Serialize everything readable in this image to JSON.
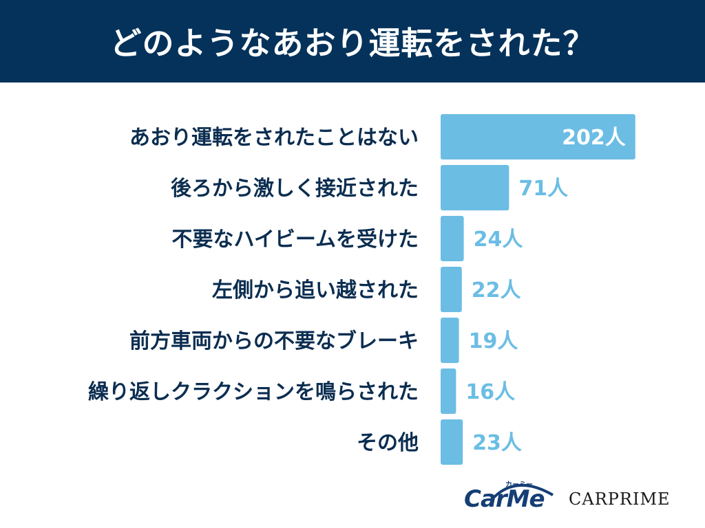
{
  "header": {
    "title": "どのようなあおり運転をされた？"
  },
  "chart_data": {
    "type": "bar",
    "orientation": "horizontal",
    "title": "どのようなあおり運転をされた？",
    "categories": [
      "あおり運転をされたことはない",
      "後ろから激しく接近された",
      "不要なハイビームを受けた",
      "左側から追い越された",
      "前方車両からの不要なブレーキ",
      "繰り返しクラクションを鳴らされた",
      "その他"
    ],
    "values": [
      202,
      71,
      24,
      22,
      19,
      16,
      23
    ],
    "value_labels": [
      "202人",
      "71人",
      "24人",
      "22人",
      "19人",
      "16人",
      "23人"
    ],
    "unit": "人",
    "bar_color": "#6bbde4",
    "label_color": "#0b2d50",
    "grid": false,
    "legend": "none"
  },
  "logos": {
    "carme": "CarMe",
    "carme_sub": "カーミー",
    "carprime": "CARPRIME"
  }
}
